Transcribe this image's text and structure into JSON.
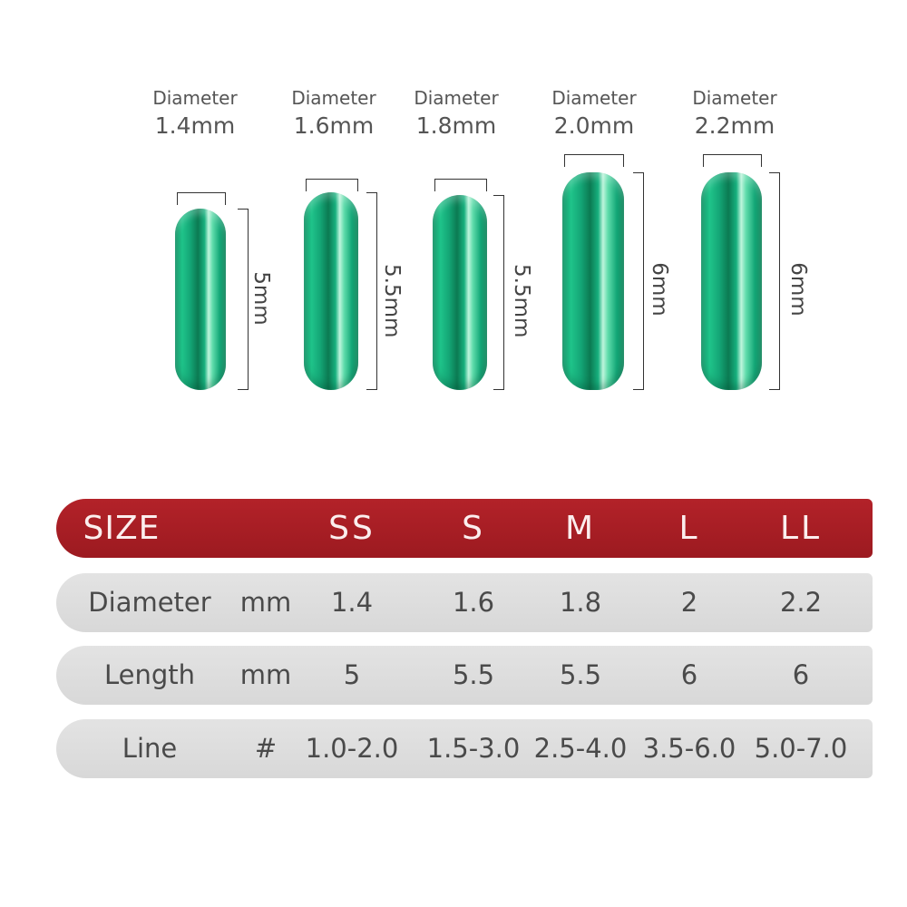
{
  "beads": [
    {
      "diameter_label": "Diameter",
      "diameter": "1.4mm",
      "length": "5mm"
    },
    {
      "diameter_label": "Diameter",
      "diameter": "1.6mm",
      "length": "5.5mm"
    },
    {
      "diameter_label": "Diameter",
      "diameter": "1.8mm",
      "length": "5.5mm"
    },
    {
      "diameter_label": "Diameter",
      "diameter": "2.0mm",
      "length": "6mm"
    },
    {
      "diameter_label": "Diameter",
      "diameter": "2.2mm",
      "length": "6mm"
    }
  ],
  "bead_color": "#17b07e",
  "table": {
    "header": {
      "label": "SIZE",
      "unit": "",
      "values": [
        "SS",
        "S",
        "M",
        "L",
        "LL"
      ],
      "color": "#a81c22"
    },
    "rows": [
      {
        "label": "Diameter",
        "unit": "mm",
        "values": [
          "1.4",
          "1.6",
          "1.8",
          "2",
          "2.2"
        ]
      },
      {
        "label": "Length",
        "unit": "mm",
        "values": [
          "5",
          "5.5",
          "5.5",
          "6",
          "6"
        ]
      },
      {
        "label": "Line",
        "unit": "#",
        "values": [
          "1.0-2.0",
          "1.5-3.0",
          "2.5-4.0",
          "3.5-6.0",
          "5.0-7.0"
        ]
      }
    ]
  }
}
